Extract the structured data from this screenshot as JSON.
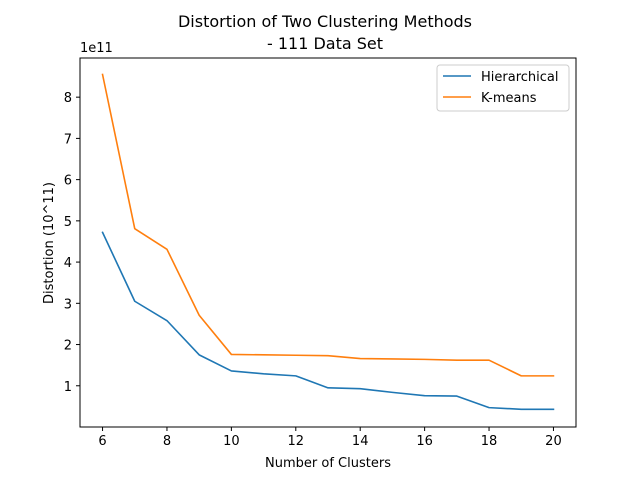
{
  "chart_data": {
    "type": "line",
    "title": "Distortion of Two Clustering Methods",
    "subtitle": "- 111 Data Set",
    "xlabel": "Number of Clusters",
    "ylabel": "Distortion (10^11)",
    "offset_text": "1e11",
    "xlim": [
      5.3,
      20.7
    ],
    "ylim": [
      0.0,
      8.95
    ],
    "xticks": [
      6,
      8,
      10,
      12,
      14,
      16,
      18,
      20
    ],
    "yticks": [
      1,
      2,
      3,
      4,
      5,
      6,
      7,
      8
    ],
    "grid": false,
    "legend_position": "top-right",
    "x": [
      6,
      7,
      8,
      9,
      10,
      11,
      12,
      13,
      14,
      15,
      16,
      17,
      18,
      19,
      20
    ],
    "series": [
      {
        "name": "Hierarchical",
        "color": "#1f77b4",
        "values": [
          4.72,
          3.05,
          2.58,
          1.75,
          1.36,
          1.29,
          1.24,
          0.95,
          0.93,
          0.84,
          0.76,
          0.75,
          0.47,
          0.43,
          0.43
        ]
      },
      {
        "name": "K-means",
        "color": "#ff7f0e",
        "values": [
          8.55,
          4.81,
          4.31,
          2.71,
          1.76,
          1.75,
          1.74,
          1.73,
          1.66,
          1.65,
          1.64,
          1.62,
          1.62,
          1.24,
          1.24
        ]
      }
    ]
  }
}
